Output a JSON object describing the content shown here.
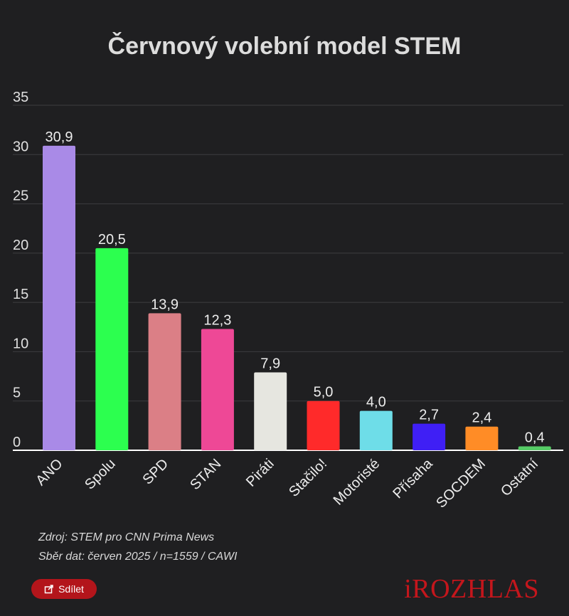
{
  "chart_data": {
    "type": "bar",
    "title": "Červnový volební model STEM",
    "categories": [
      "ANO",
      "Spolu",
      "SPD",
      "STAN",
      "Piráti",
      "Stačilo!",
      "Motoristé",
      "Přísaha",
      "SOCDEM",
      "Ostatní"
    ],
    "values": [
      30.9,
      20.5,
      13.9,
      12.3,
      7.9,
      5.0,
      4.0,
      2.7,
      2.4,
      0.4
    ],
    "value_labels": [
      "30,9",
      "20,5",
      "13,9",
      "12,3",
      "7,9",
      "5,0",
      "4,0",
      "2,7",
      "2,4",
      "0,4"
    ],
    "colors": [
      "#a98ae7",
      "#2cff4f",
      "#db7f86",
      "#ee4896",
      "#e6e6e0",
      "#ff2a2a",
      "#6edde8",
      "#3f1ff5",
      "#ff8c26",
      "#56cc66"
    ],
    "y_ticks": [
      "0",
      "5",
      "10",
      "15",
      "20",
      "25",
      "30",
      "35"
    ],
    "ylim": [
      0,
      35
    ],
    "grid": true,
    "xlabel": "",
    "ylabel": ""
  },
  "footer": {
    "source_line1": "Zdroj: STEM pro CNN Prima News",
    "source_line2": "Sběr dat: červen 2025 / n=1559 / CAWI",
    "share_label": "Sdílet",
    "logo_text": "iROZHLAS",
    "share_icon": "share-icon"
  }
}
